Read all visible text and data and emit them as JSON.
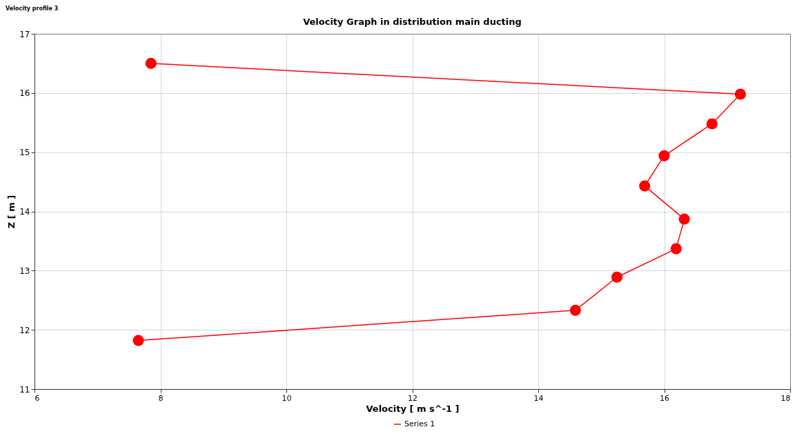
{
  "chart_data": {
    "type": "line",
    "title": "Velocity profile 3",
    "subtitle": "Velocity Graph in distribution main ducting",
    "xlabel": "Velocity [ m s^-1 ]",
    "ylabel": "Z [ m ]",
    "series": [
      {
        "name": "Series 1",
        "color": "#ff0000",
        "x": [
          7.85,
          17.21,
          16.76,
          16.0,
          15.69,
          16.32,
          16.19,
          15.25,
          14.59,
          7.65
        ],
        "values": [
          16.5,
          15.98,
          15.48,
          14.94,
          14.43,
          13.87,
          13.37,
          12.89,
          12.33,
          11.82
        ]
      }
    ],
    "xlim": [
      6,
      18
    ],
    "xticks": [
      6,
      8,
      10,
      12,
      14,
      16,
      18
    ],
    "ylim": [
      11,
      17
    ],
    "yticks": [
      11,
      12,
      13,
      14,
      15,
      16,
      17
    ],
    "grid": true,
    "legend": "bottom",
    "marker": "circle",
    "line_style": "solid"
  }
}
